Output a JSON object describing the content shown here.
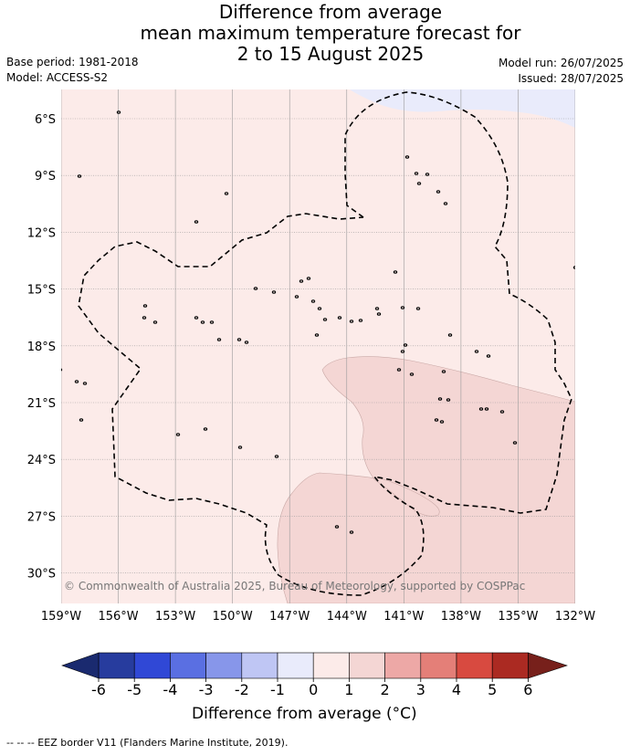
{
  "title": {
    "line1": "Difference from average",
    "line2": "mean maximum temperature forecast for",
    "line3": "2 to 15 August 2025"
  },
  "meta": {
    "base_period": "Base period: 1981-2018",
    "model": "Model: ACCESS-S2",
    "model_run": "Model run: 26/07/2025",
    "issued": "Issued: 28/07/2025"
  },
  "map": {
    "lat_labels": [
      "6°S",
      "9°S",
      "12°S",
      "15°S",
      "18°S",
      "21°S",
      "24°S",
      "27°S",
      "30°S"
    ],
    "lon_labels": [
      "159°W",
      "156°W",
      "153°W",
      "150°W",
      "147°W",
      "144°W",
      "141°W",
      "138°W",
      "135°W",
      "132°W"
    ],
    "copyright": "© Commonwealth of Australia 2025, Bureau of Meteorology, supported by COSPPac",
    "colors": {
      "background_0_to_1": "#fcebe9",
      "zone_1_to_2": "#f4d6d4",
      "zone_minus1_to_0": "#e9ebfb",
      "gridline": "#9a9a9a"
    }
  },
  "colorbar": {
    "title": "Difference from average (°C)",
    "ticks": [
      "-6",
      "-5",
      "-4",
      "-3",
      "-2",
      "-1",
      "0",
      "1",
      "2",
      "3",
      "4",
      "5",
      "6"
    ],
    "colors": [
      "#273c9e",
      "#3048d6",
      "#5a6fe2",
      "#8796ea",
      "#bfc6f4",
      "#e9ebfb",
      "#fcebe9",
      "#f4d6d4",
      "#eda8a6",
      "#e47f78",
      "#d84a40",
      "#ab2a22"
    ],
    "under_color": "#1a2a6f",
    "over_color": "#77201b"
  },
  "footer": "-- -- -- EEZ border V11 (Flanders Marine Institute, 2019)."
}
